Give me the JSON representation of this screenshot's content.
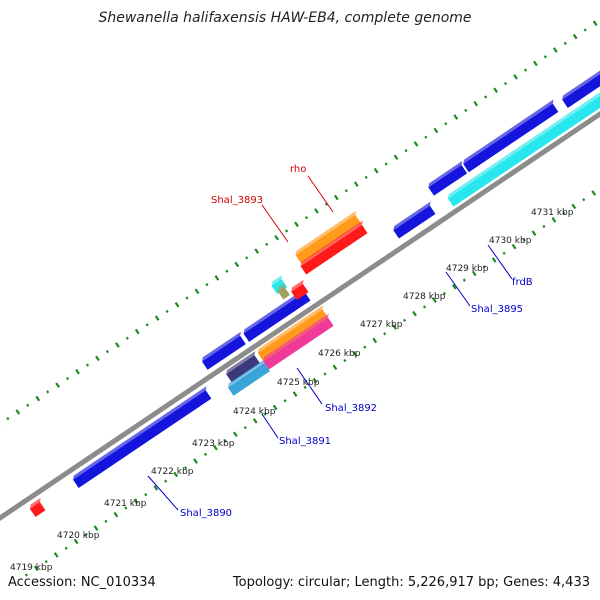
{
  "title": "Shewanella halifaxensis HAW-EB4, complete genome",
  "footer": {
    "accession": "Accession: NC_010334",
    "summary": "Topology: circular; Length: 5,226,917 bp; Genes: 4,433"
  },
  "scale_labels": [
    "4719 kbp",
    "4720 kbp",
    "4721 kbp",
    "4722 kbp",
    "4723 kbp",
    "4724 kbp",
    "4725 kbp",
    "4726 kbp",
    "4727 kbp",
    "4728 kbp",
    "4729 kbp",
    "4730 kbp",
    "4731 kbp"
  ],
  "feature_labels": [
    {
      "text": "rho",
      "color": "#d40000"
    },
    {
      "text": "Shal_3893",
      "color": "#d40000"
    },
    {
      "text": "Shal_3890",
      "color": "#0000c8"
    },
    {
      "text": "Shal_3891",
      "color": "#0000c8"
    },
    {
      "text": "Shal_3892",
      "color": "#0000c8"
    },
    {
      "text": "Shal_3895",
      "color": "#0000c8"
    },
    {
      "text": "frdB",
      "color": "#0000c8"
    }
  ],
  "colors": {
    "backbone": "#8c8c8c",
    "tick": "#1f8a1f",
    "cds": "#1414dc",
    "rna": "#ff1a1a",
    "orange": "#ff9a1a",
    "cyan": "#28e6ee",
    "steelblue": "#3aa3d8",
    "pink": "#f03a9a"
  }
}
